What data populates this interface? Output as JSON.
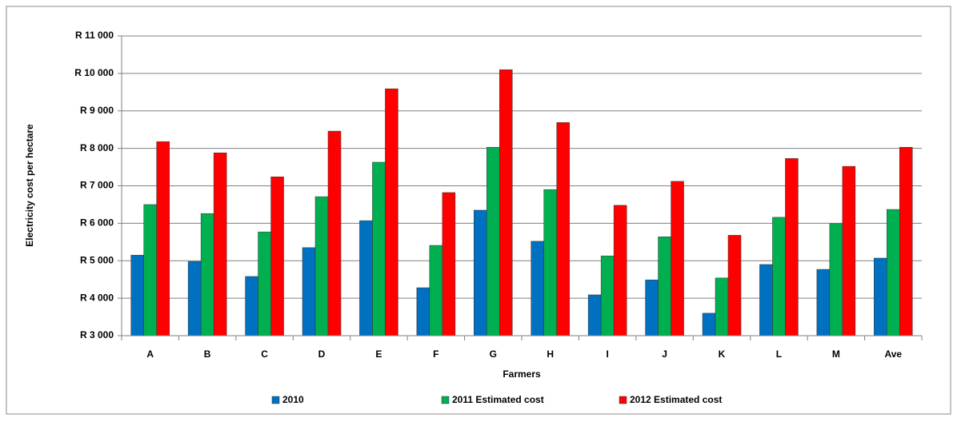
{
  "chart_data": {
    "type": "bar",
    "y_label": "Electricity cost per hectare",
    "x_label": "Farmers",
    "categories": [
      "A",
      "B",
      "C",
      "D",
      "E",
      "F",
      "G",
      "H",
      "I",
      "J",
      "K",
      "L",
      "M",
      "Ave"
    ],
    "series": [
      {
        "name": "2010",
        "color": "#0070c0",
        "values": [
          5150,
          4980,
          4580,
          5350,
          6070,
          4280,
          6350,
          5520,
          4090,
          4490,
          3600,
          4900,
          4770,
          5070
        ]
      },
      {
        "name": "2011 Estimated cost",
        "color": "#00b050",
        "values": [
          6500,
          6260,
          5770,
          6710,
          7630,
          5410,
          8030,
          6900,
          5130,
          5640,
          4540,
          6160,
          5990,
          6370
        ]
      },
      {
        "name": "2012 Estimated cost",
        "color": "#ff0000",
        "values": [
          8180,
          7880,
          7240,
          8460,
          9590,
          6820,
          10100,
          8690,
          6480,
          7120,
          5680,
          7730,
          7520,
          8030
        ]
      }
    ],
    "ylim": [
      3000,
      11000
    ],
    "yticks": [
      {
        "value": 3000,
        "label": "R 3 000"
      },
      {
        "value": 4000,
        "label": "R 4 000"
      },
      {
        "value": 5000,
        "label": "R 5 000"
      },
      {
        "value": 6000,
        "label": "R 6 000"
      },
      {
        "value": 7000,
        "label": "R 7 000"
      },
      {
        "value": 8000,
        "label": "R 8 000"
      },
      {
        "value": 9000,
        "label": "R 9 000"
      },
      {
        "value": 10000,
        "label": "R 10 000"
      },
      {
        "value": 11000,
        "label": "R 11 000"
      }
    ],
    "grid": true,
    "legend": "bottom"
  }
}
